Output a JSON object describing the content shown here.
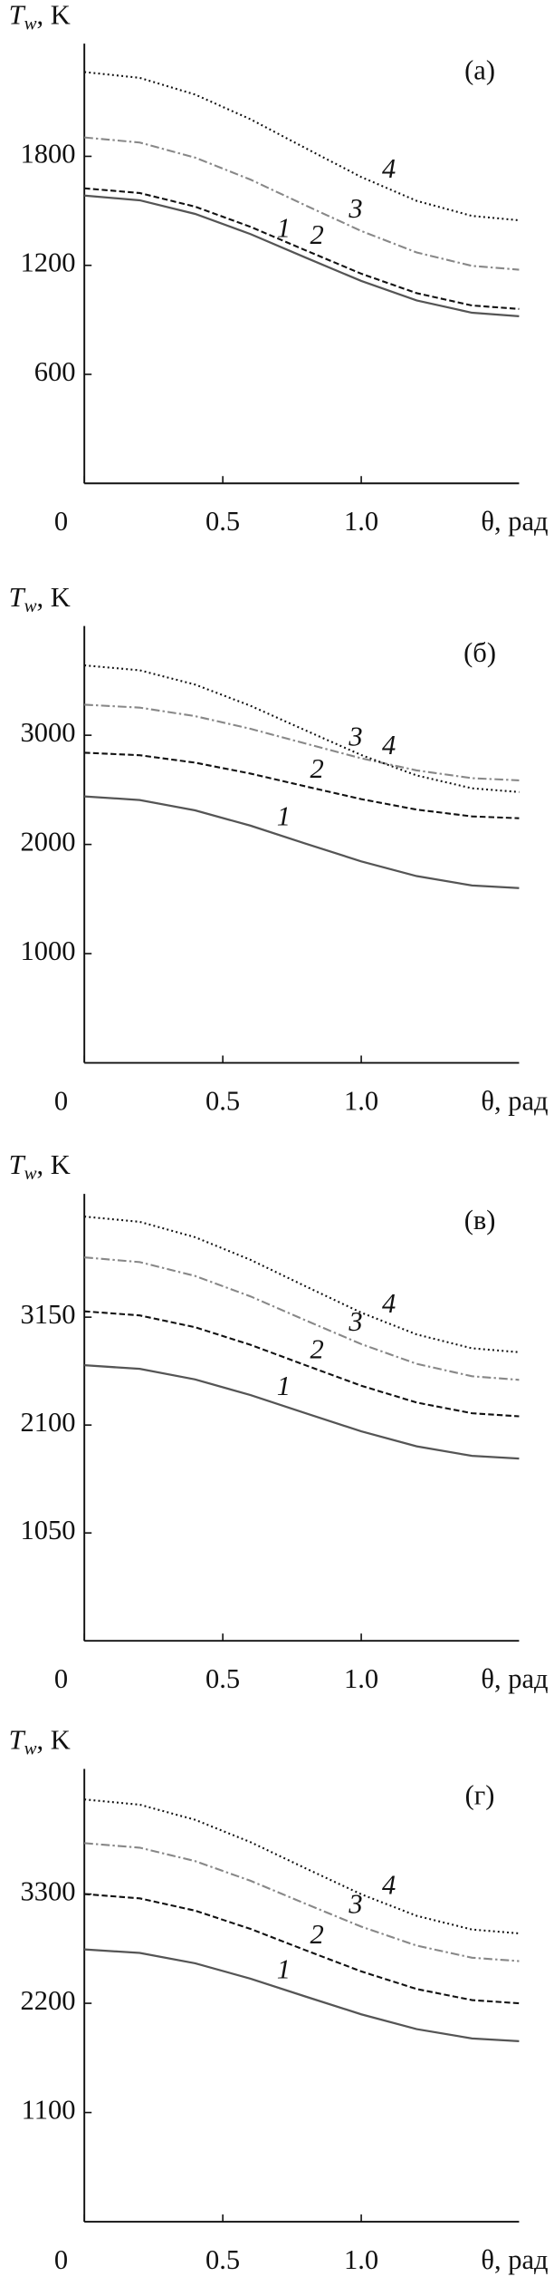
{
  "chart_data": [
    {
      "type": "line",
      "panel_label": "(а)",
      "ylabel": {
        "symbol": "T",
        "subscript": "w",
        "unit": ", K"
      },
      "xlabel": "θ, рад",
      "x": [
        0,
        0.2,
        0.4,
        0.6,
        0.8,
        1.0,
        1.2,
        1.4,
        1.57
      ],
      "xlim": [
        0,
        1.57
      ],
      "xticks": [
        0,
        0.5,
        {
          "value": 1,
          "label": "1.0"
        }
      ],
      "ylim": [
        0,
        2420
      ],
      "yticks": [
        600,
        1200,
        1800
      ],
      "series": [
        {
          "name": "1",
          "color": "#555555",
          "style": "solid",
          "values": [
            1584,
            1558,
            1483,
            1372,
            1242,
            1114,
            1007,
            939,
            920
          ]
        },
        {
          "name": "2",
          "color": "#111111",
          "style": "dashed",
          "values": [
            1624,
            1598,
            1523,
            1412,
            1282,
            1154,
            1047,
            979,
            960
          ]
        },
        {
          "name": "3",
          "color": "#888888",
          "style": "dashdot",
          "values": [
            1904,
            1876,
            1793,
            1672,
            1529,
            1389,
            1271,
            1197,
            1176
          ]
        },
        {
          "name": "4",
          "color": "#111111",
          "style": "dotted",
          "values": [
            2264,
            2232,
            2140,
            2004,
            1844,
            1686,
            1555,
            1472,
            1448
          ]
        }
      ]
    },
    {
      "type": "line",
      "panel_label": "(б)",
      "ylabel": {
        "symbol": "T",
        "subscript": "w",
        "unit": ", K"
      },
      "xlabel": "θ, рад",
      "x": [
        0,
        0.2,
        0.4,
        0.6,
        0.8,
        1.0,
        1.2,
        1.4,
        1.57
      ],
      "xlim": [
        0,
        1.57
      ],
      "xticks": [
        0,
        0.5,
        {
          "value": 1,
          "label": "1.0"
        }
      ],
      "ylim": [
        0,
        4000
      ],
      "yticks": [
        1000,
        2000,
        3000
      ],
      "series": [
        {
          "name": "1",
          "color": "#555555",
          "style": "solid",
          "values": [
            2440,
            2407,
            2312,
            2172,
            2007,
            1845,
            1710,
            1624,
            1600
          ]
        },
        {
          "name": "2",
          "color": "#111111",
          "style": "dashed",
          "values": [
            2840,
            2817,
            2749,
            2649,
            2531,
            2415,
            2319,
            2257,
            2240
          ]
        },
        {
          "name": "3",
          "color": "#888888",
          "style": "dashdot",
          "values": [
            3280,
            3253,
            3175,
            3059,
            2923,
            2789,
            2678,
            2607,
            2587
          ]
        },
        {
          "name": "4",
          "color": "#111111",
          "style": "dotted",
          "values": [
            3640,
            3595,
            3464,
            3270,
            3043,
            2819,
            2632,
            2514,
            2480
          ]
        }
      ]
    },
    {
      "type": "line",
      "panel_label": "(в)",
      "ylabel": {
        "symbol": "T",
        "subscript": "w",
        "unit": ", K"
      },
      "xlabel": "θ, рад",
      "x": [
        0,
        0.2,
        0.4,
        0.6,
        0.8,
        1.0,
        1.2,
        1.4,
        1.57
      ],
      "xlim": [
        0,
        1.57
      ],
      "xticks": [
        0,
        0.5,
        {
          "value": 1,
          "label": "1.0"
        }
      ],
      "ylim": [
        0,
        4350
      ],
      "yticks": [
        1050,
        2100,
        3150
      ],
      "series": [
        {
          "name": "1",
          "color": "#555555",
          "style": "solid",
          "values": [
            2682,
            2647,
            2544,
            2392,
            2214,
            2039,
            1893,
            1800,
            1774
          ]
        },
        {
          "name": "2",
          "color": "#111111",
          "style": "dashed",
          "values": [
            3207,
            3167,
            3052,
            2881,
            2681,
            2483,
            2319,
            2215,
            2185
          ]
        },
        {
          "name": "3",
          "color": "#888888",
          "style": "dashdot",
          "values": [
            3732,
            3686,
            3551,
            3352,
            3118,
            2888,
            2696,
            2575,
            2540
          ]
        },
        {
          "name": "4",
          "color": "#111111",
          "style": "dotted",
          "values": [
            4129,
            4078,
            3928,
            3708,
            3449,
            3194,
            2982,
            2847,
            2809
          ]
        }
      ]
    },
    {
      "type": "line",
      "panel_label": "(г)",
      "ylabel": {
        "symbol": "T",
        "subscript": "w",
        "unit": ", K"
      },
      "xlabel": "θ, рад",
      "x": [
        0,
        0.2,
        0.4,
        0.6,
        0.8,
        1.0,
        1.2,
        1.4,
        1.57
      ],
      "xlim": [
        0,
        1.57
      ],
      "xticks": [
        0,
        0.5,
        {
          "value": 1,
          "label": "1.0"
        }
      ],
      "ylim": [
        0,
        4560
      ],
      "yticks": [
        1100,
        2200,
        3300
      ],
      "series": [
        {
          "name": "1",
          "color": "#555555",
          "style": "solid",
          "values": [
            2743,
            2707,
            2603,
            2448,
            2267,
            2089,
            1940,
            1846,
            1819
          ]
        },
        {
          "name": "2",
          "color": "#111111",
          "style": "dashed",
          "values": [
            3300,
            3257,
            3133,
            2949,
            2733,
            2521,
            2344,
            2232,
            2200
          ]
        },
        {
          "name": "3",
          "color": "#888888",
          "style": "dashdot",
          "values": [
            3813,
            3767,
            3632,
            3434,
            3201,
            2972,
            2781,
            2659,
            2625
          ]
        },
        {
          "name": "4",
          "color": "#111111",
          "style": "dotted",
          "values": [
            4253,
            4200,
            4048,
            3823,
            3558,
            3298,
            3081,
            2943,
            2904
          ]
        }
      ]
    }
  ]
}
